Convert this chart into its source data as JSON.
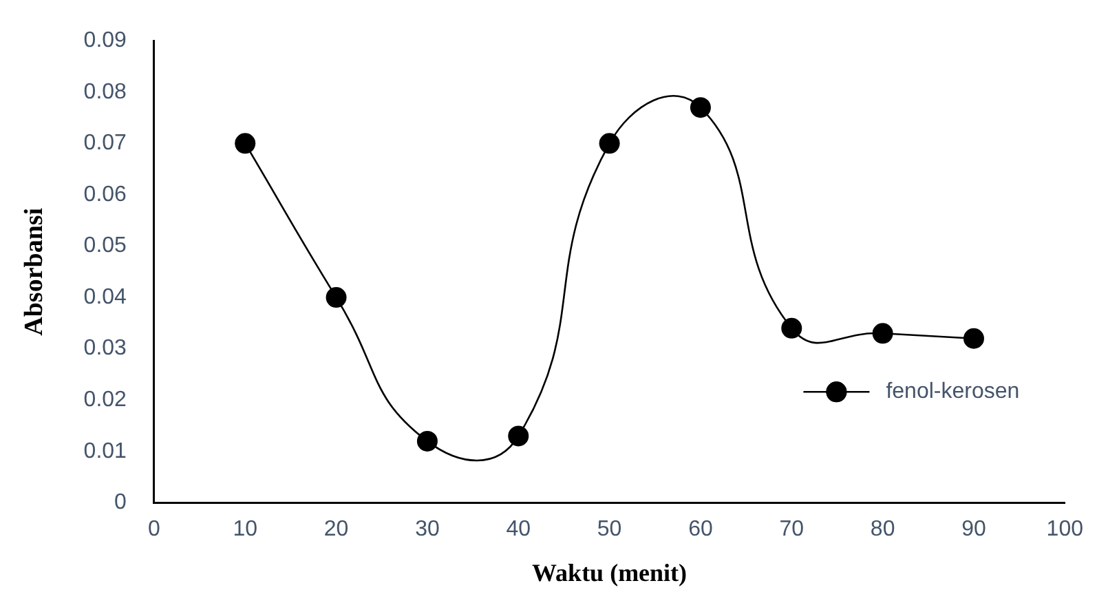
{
  "chart_data": {
    "type": "line",
    "xlabel": "Waktu (menit)",
    "ylabel": "Absorbansi",
    "x": [
      10,
      20,
      30,
      40,
      50,
      60,
      70,
      80,
      90
    ],
    "series": [
      {
        "name": "fenol-kerosen",
        "color": "#000000",
        "values": [
          0.07,
          0.04,
          0.012,
          0.013,
          0.07,
          0.077,
          0.034,
          0.033,
          0.032
        ]
      }
    ],
    "xlim": [
      0,
      100
    ],
    "xticks": [
      0,
      10,
      20,
      30,
      40,
      50,
      60,
      70,
      80,
      90,
      100
    ],
    "ylim": [
      0,
      0.09
    ],
    "yticks": [
      0,
      0.01,
      0.02,
      0.03,
      0.04,
      0.05,
      0.06,
      0.07,
      0.08,
      0.09
    ],
    "grid": false,
    "legend": "bottom right",
    "marker": "circle",
    "line_style": "solid"
  }
}
